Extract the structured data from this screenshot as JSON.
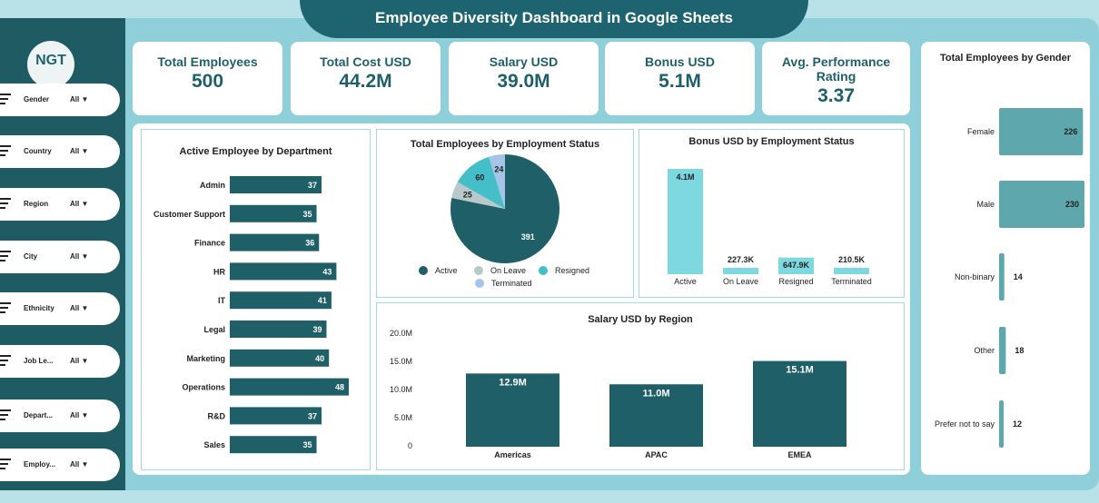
{
  "title": "Employee Diversity Dashboard in Google Sheets",
  "logo_text": "NGT",
  "filters": [
    {
      "label": "Gender",
      "value": "All"
    },
    {
      "label": "Country",
      "value": "All"
    },
    {
      "label": "Region",
      "value": "All"
    },
    {
      "label": "City",
      "value": "All"
    },
    {
      "label": "Ethnicity",
      "value": "All"
    },
    {
      "label": "Job Le...",
      "value": "All"
    },
    {
      "label": "Depart...",
      "value": "All"
    },
    {
      "label": "Employ...",
      "value": "All"
    }
  ],
  "kpis": [
    {
      "title": "Total Employees",
      "value": "500"
    },
    {
      "title": "Total Cost USD",
      "value": "44.2M"
    },
    {
      "title": "Salary USD",
      "value": "39.0M"
    },
    {
      "title": "Bonus USD",
      "value": "5.1M"
    },
    {
      "title": "Avg. Performance Rating",
      "value": "3.37"
    }
  ],
  "colors": {
    "dark": "#1f6068",
    "cyan": "#7ed8e0",
    "grey": "#b8c9cc",
    "teal": "#44bfc9",
    "lightblue": "#a6c4e6",
    "gender": "#5ea7ad"
  },
  "chart_data": [
    {
      "type": "bar",
      "title": "Active Employee by Department",
      "categories": [
        "Admin",
        "Customer Support",
        "Finance",
        "HR",
        "IT",
        "Legal",
        "Marketing",
        "Operations",
        "R&D",
        "Sales"
      ],
      "values": [
        37,
        35,
        36,
        43,
        41,
        39,
        40,
        48,
        37,
        35
      ]
    },
    {
      "type": "pie",
      "title": "Total Employees by Employment Status",
      "categories": [
        "Active",
        "On Leave",
        "Resigned",
        "Terminated"
      ],
      "values": [
        391,
        25,
        60,
        24
      ]
    },
    {
      "type": "bar",
      "title": "Bonus USD by Employment Status",
      "categories": [
        "Active",
        "On Leave",
        "Resigned",
        "Terminated"
      ],
      "values": [
        4100000,
        227300,
        647900,
        210500
      ],
      "labels": [
        "4.1M",
        "227.3K",
        "647.9K",
        "210.5K"
      ]
    },
    {
      "type": "bar",
      "title": "Salary USD by Region",
      "categories": [
        "Americas",
        "APAC",
        "EMEA"
      ],
      "values": [
        12900000,
        11000000,
        15100000
      ],
      "labels": [
        "12.9M",
        "11.0M",
        "15.1M"
      ],
      "yticks": [
        "20.0M",
        "15.0M",
        "10.0M",
        "5.0M",
        "0"
      ],
      "ylim": [
        0,
        20000000
      ]
    },
    {
      "type": "bar",
      "title": "Total Employees by Gender",
      "categories": [
        "Female",
        "Male",
        "Non-binary",
        "Other",
        "Prefer not to say"
      ],
      "values": [
        226,
        230,
        14,
        18,
        12
      ]
    }
  ]
}
